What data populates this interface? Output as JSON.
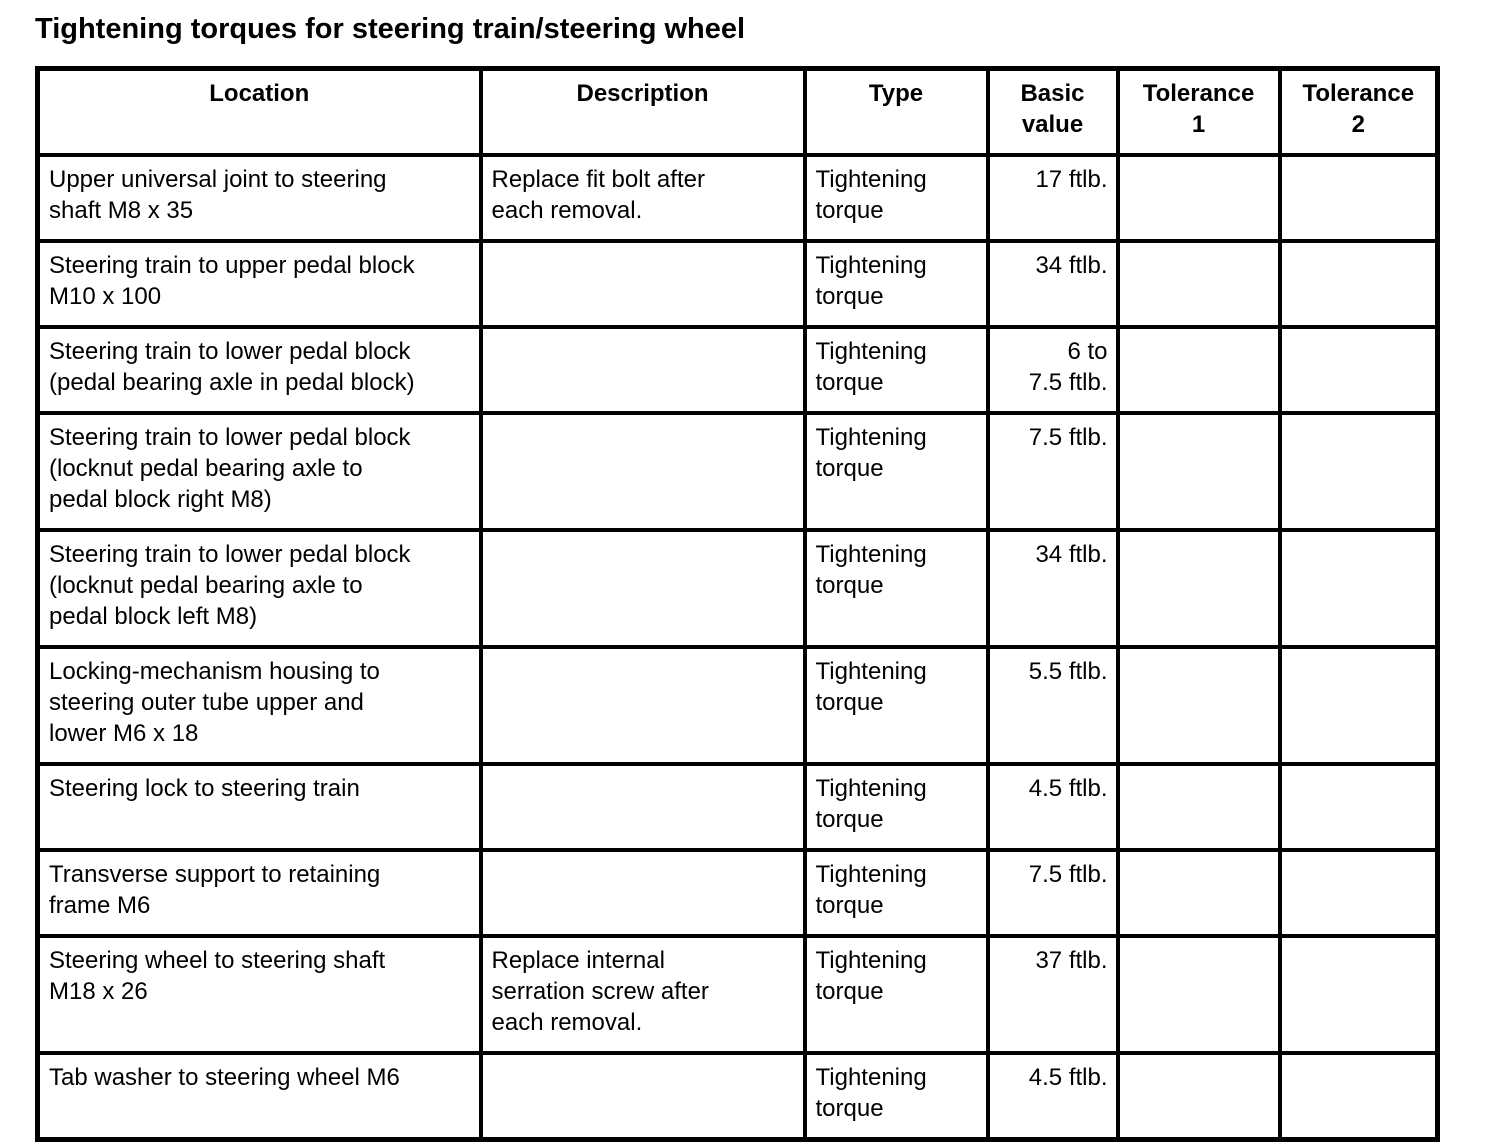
{
  "title": "Tightening torques for steering train/steering wheel",
  "colors": {
    "text": "#000000",
    "background": "#ffffff",
    "border": "#000000"
  },
  "table": {
    "headers": [
      "Location",
      "Description",
      "Type",
      "Basic\nvalue",
      "Tolerance\n1",
      "Tolerance\n2"
    ],
    "rows": [
      {
        "location": "Upper universal joint to steering\nshaft M8 x 35",
        "description": "Replace fit bolt after\neach removal.",
        "type": "Tightening\ntorque",
        "basic_value": "17 ftlb.",
        "tolerance_1": "",
        "tolerance_2": ""
      },
      {
        "location": "Steering train to upper pedal block\nM10 x 100",
        "description": "",
        "type": "Tightening\ntorque",
        "basic_value": "34 ftlb.",
        "tolerance_1": "",
        "tolerance_2": ""
      },
      {
        "location": "Steering train to lower pedal block\n(pedal bearing axle in pedal block)",
        "description": "",
        "type": "Tightening\ntorque",
        "basic_value": "6 to\n7.5 ftlb.",
        "tolerance_1": "",
        "tolerance_2": ""
      },
      {
        "location": "Steering train to lower pedal block\n(locknut pedal bearing axle to\npedal block right M8)",
        "description": "",
        "type": "Tightening\ntorque",
        "basic_value": "7.5 ftlb.",
        "tolerance_1": "",
        "tolerance_2": ""
      },
      {
        "location": "Steering train to lower pedal block\n(locknut pedal bearing axle to\npedal block left M8)",
        "description": "",
        "type": "Tightening\ntorque",
        "basic_value": "34 ftlb.",
        "tolerance_1": "",
        "tolerance_2": ""
      },
      {
        "location": "Locking-mechanism housing to\nsteering outer tube upper and\nlower M6 x 18",
        "description": "",
        "type": "Tightening\ntorque",
        "basic_value": "5.5 ftlb.",
        "tolerance_1": "",
        "tolerance_2": ""
      },
      {
        "location": "Steering lock to steering train",
        "description": "",
        "type": "Tightening\ntorque",
        "basic_value": "4.5 ftlb.",
        "tolerance_1": "",
        "tolerance_2": ""
      },
      {
        "location": "Transverse support to retaining\nframe M6",
        "description": "",
        "type": "Tightening\ntorque",
        "basic_value": "7.5 ftlb.",
        "tolerance_1": "",
        "tolerance_2": ""
      },
      {
        "location": "Steering wheel to steering shaft\nM18 x 26",
        "description": "Replace internal\nserration screw after\neach removal.",
        "type": "Tightening\ntorque",
        "basic_value": "37 ftlb.",
        "tolerance_1": "",
        "tolerance_2": ""
      },
      {
        "location": "Tab washer to steering wheel M6",
        "description": "",
        "type": "Tightening\ntorque",
        "basic_value": "4.5 ftlb.",
        "tolerance_1": "",
        "tolerance_2": ""
      }
    ]
  }
}
